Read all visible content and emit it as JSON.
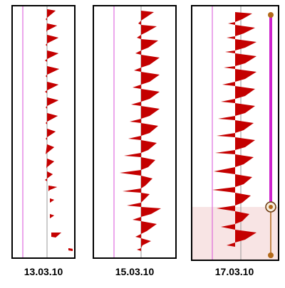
{
  "colors": {
    "trace": "#c40000",
    "guide_line": "#d94fd9",
    "baseline": "#9a9a9a",
    "slider": "#cc22cc",
    "selection_shade": "#f8e4e4",
    "panel_border": "#000000",
    "knob": "#b36a1a"
  },
  "panels": [
    {
      "id": "panel-1",
      "date": "13.03.10"
    },
    {
      "id": "panel-2",
      "date": "15.03.10"
    },
    {
      "id": "panel-3",
      "date": "17.03.10",
      "slider_position": 0.75
    }
  ]
}
